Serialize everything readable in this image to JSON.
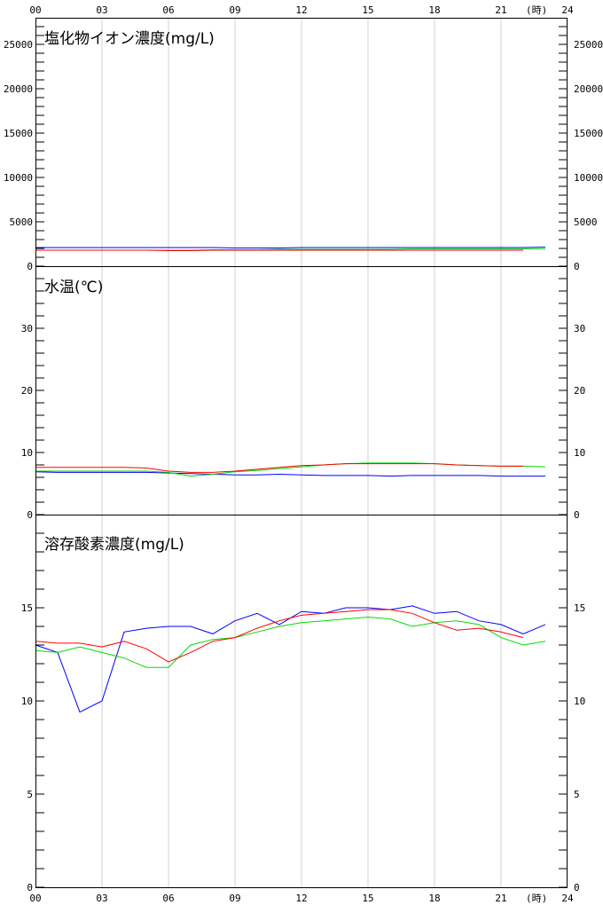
{
  "x_axis": {
    "ticks": [
      "00",
      "03",
      "06",
      "09",
      "12",
      "15",
      "18",
      "21",
      "24"
    ],
    "unit": "(時)"
  },
  "chart_data": [
    {
      "type": "line",
      "title": "塩化物イオン濃度(mg/L)",
      "xlim": [
        0,
        24
      ],
      "ylim": [
        0,
        28000
      ],
      "grid": true,
      "y_ticks": [
        "0",
        "5000",
        "10000",
        "15000",
        "20000",
        "25000"
      ],
      "y_tick_values": [
        0,
        5000,
        10000,
        15000,
        20000,
        25000
      ],
      "x": [
        0,
        1,
        2,
        3,
        4,
        5,
        6,
        7,
        8,
        9,
        10,
        11,
        12,
        13,
        14,
        15,
        16,
        17,
        18,
        19,
        20,
        21,
        22,
        23
      ],
      "series": [
        {
          "color": "#0000ff",
          "values": [
            2100,
            2100,
            2100,
            2100,
            2100,
            2100,
            2100,
            2100,
            2100,
            2050,
            2050,
            2050,
            2100,
            2100,
            2100,
            2100,
            2100,
            2100,
            2100,
            2100,
            2100,
            2100,
            2100,
            2150
          ]
        },
        {
          "color": "#00dd00",
          "values": [
            1800,
            1800,
            1800,
            1800,
            1800,
            1800,
            1800,
            1800,
            1850,
            1850,
            1850,
            1900,
            1900,
            1900,
            1900,
            1900,
            1900,
            1950,
            1950,
            1950,
            1950,
            1950,
            1950,
            1950
          ]
        },
        {
          "color": "#ff0000",
          "values": [
            1800,
            1800,
            1800,
            1800,
            1800,
            1800,
            1750,
            1750,
            1800,
            1800,
            1800,
            1800,
            1800,
            1800,
            1800,
            1800,
            1800,
            1800,
            1800,
            1800,
            1800,
            1800,
            1800,
            null
          ]
        }
      ]
    },
    {
      "type": "line",
      "title": "水温(℃)",
      "xlim": [
        0,
        24
      ],
      "ylim": [
        0,
        40
      ],
      "grid": true,
      "y_ticks": [
        "0",
        "10",
        "20",
        "30"
      ],
      "y_tick_values": [
        0,
        10,
        20,
        30
      ],
      "x": [
        0,
        1,
        2,
        3,
        4,
        5,
        6,
        7,
        8,
        9,
        10,
        11,
        12,
        13,
        14,
        15,
        16,
        17,
        18,
        19,
        20,
        21,
        22,
        23
      ],
      "series": [
        {
          "color": "#0000ff",
          "values": [
            6.9,
            6.8,
            6.8,
            6.8,
            6.8,
            6.8,
            6.7,
            6.6,
            6.5,
            6.4,
            6.4,
            6.5,
            6.4,
            6.3,
            6.3,
            6.3,
            6.2,
            6.3,
            6.3,
            6.3,
            6.3,
            6.2,
            6.2,
            6.2
          ]
        },
        {
          "color": "#00dd00",
          "values": [
            7.0,
            7.0,
            7.0,
            7.0,
            7.0,
            7.0,
            6.8,
            6.2,
            6.5,
            6.9,
            7.1,
            7.4,
            7.7,
            8.0,
            8.2,
            8.3,
            8.3,
            8.3,
            8.2,
            8.0,
            7.9,
            7.8,
            7.8,
            7.7
          ]
        },
        {
          "color": "#ff0000",
          "values": [
            7.6,
            7.6,
            7.6,
            7.6,
            7.6,
            7.5,
            7.0,
            6.8,
            6.8,
            7.0,
            7.3,
            7.6,
            7.9,
            8.0,
            8.2,
            8.2,
            8.2,
            8.2,
            8.2,
            8.0,
            7.9,
            7.8,
            7.8,
            null
          ]
        }
      ]
    },
    {
      "type": "line",
      "title": "溶存酸素濃度(mg/L)",
      "xlim": [
        0,
        24
      ],
      "ylim": [
        0,
        20
      ],
      "grid": true,
      "y_ticks": [
        "0",
        "5",
        "10",
        "15"
      ],
      "y_tick_values": [
        0,
        5,
        10,
        15
      ],
      "x": [
        0,
        1,
        2,
        3,
        4,
        5,
        6,
        7,
        8,
        9,
        10,
        11,
        12,
        13,
        14,
        15,
        16,
        17,
        18,
        19,
        20,
        21,
        22,
        23
      ],
      "series": [
        {
          "color": "#0000ff",
          "values": [
            13.0,
            12.6,
            9.4,
            10.0,
            13.7,
            13.9,
            14.0,
            14.0,
            13.6,
            14.3,
            14.7,
            14.1,
            14.8,
            14.7,
            15.0,
            15.0,
            14.9,
            15.1,
            14.7,
            14.8,
            14.3,
            14.1,
            13.6,
            14.1
          ]
        },
        {
          "color": "#00dd00",
          "values": [
            12.7,
            12.6,
            12.9,
            12.6,
            12.3,
            11.8,
            11.8,
            13.0,
            13.3,
            13.4,
            13.7,
            14.0,
            14.2,
            14.3,
            14.4,
            14.5,
            14.4,
            14.0,
            14.2,
            14.3,
            14.1,
            13.4,
            13.0,
            13.2
          ]
        },
        {
          "color": "#ff0000",
          "values": [
            13.2,
            13.1,
            13.1,
            12.9,
            13.2,
            12.8,
            12.1,
            12.6,
            13.2,
            13.4,
            13.9,
            14.3,
            14.6,
            14.7,
            14.8,
            14.9,
            14.9,
            14.7,
            14.2,
            13.8,
            13.9,
            13.7,
            13.4,
            null
          ]
        }
      ]
    }
  ]
}
